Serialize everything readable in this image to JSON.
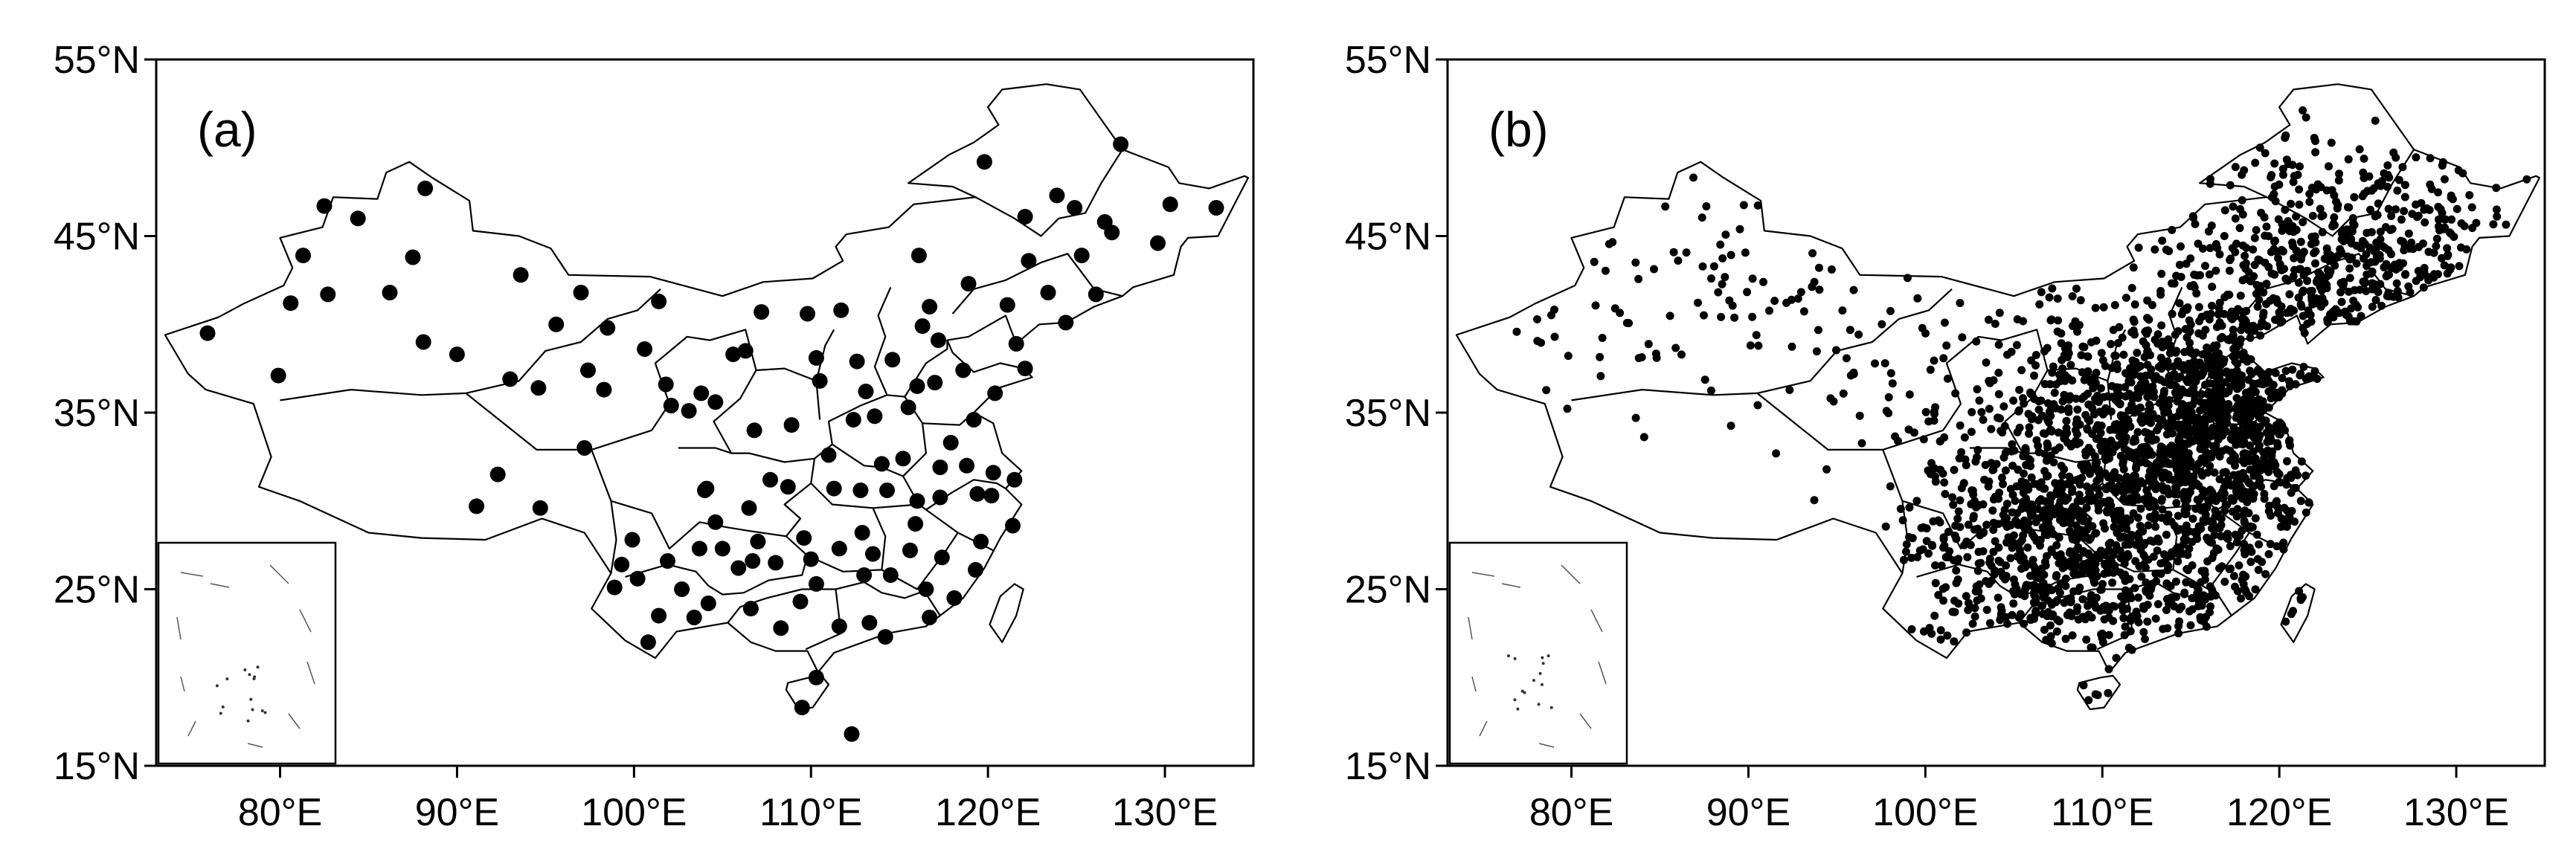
{
  "figure": {
    "panels": [
      {
        "label": "(a)",
        "station_density": "sparse",
        "inset": "South China Sea islands"
      },
      {
        "label": "(b)",
        "station_density": "dense",
        "inset": "South China Sea islands"
      }
    ]
  },
  "axes": {
    "lon_range": [
      73,
      135
    ],
    "lat_range": [
      15,
      55
    ],
    "x_ticks": [
      "80°E",
      "90°E",
      "100°E",
      "110°E",
      "120°E",
      "130°E"
    ],
    "x_tick_values": [
      80,
      90,
      100,
      110,
      120,
      130
    ],
    "y_ticks": [
      "55°N",
      "45°N",
      "35°N",
      "25°N",
      "15°N"
    ],
    "y_tick_values": [
      55,
      45,
      35,
      25,
      15
    ]
  },
  "map": {
    "region": "China",
    "marker_color": "#000000",
    "boundary_color": "#000000",
    "background": "#ffffff"
  },
  "stations_a": [
    [
      75.9,
      39.5
    ],
    [
      79.9,
      37.1
    ],
    [
      80.6,
      41.2
    ],
    [
      81.3,
      43.9
    ],
    [
      82.7,
      41.7
    ],
    [
      82.5,
      46.7
    ],
    [
      84.4,
      46.0
    ],
    [
      86.2,
      41.8
    ],
    [
      87.5,
      43.8
    ],
    [
      88.1,
      39.0
    ],
    [
      88.2,
      47.7
    ],
    [
      90.0,
      38.3
    ],
    [
      91.1,
      29.7
    ],
    [
      92.3,
      31.5
    ],
    [
      93.6,
      42.8
    ],
    [
      93.0,
      36.9
    ],
    [
      94.6,
      36.4
    ],
    [
      94.7,
      29.6
    ],
    [
      95.6,
      40.0
    ],
    [
      97.4,
      37.4
    ],
    [
      97.0,
      41.8
    ],
    [
      97.2,
      33.0
    ],
    [
      98.5,
      39.8
    ],
    [
      98.3,
      36.3
    ],
    [
      99.3,
      26.4
    ],
    [
      100.6,
      38.6
    ],
    [
      101.8,
      36.6
    ],
    [
      101.4,
      41.3
    ],
    [
      102.1,
      35.4
    ],
    [
      103.1,
      35.1
    ],
    [
      103.8,
      36.1
    ],
    [
      104.1,
      30.7
    ],
    [
      104.6,
      35.6
    ],
    [
      105.6,
      38.3
    ],
    [
      106.3,
      38.5
    ],
    [
      106.8,
      34.0
    ],
    [
      107.2,
      40.7
    ],
    [
      108.9,
      34.3
    ],
    [
      109.8,
      40.6
    ],
    [
      110.3,
      38.1
    ],
    [
      110.5,
      36.8
    ],
    [
      111.7,
      40.8
    ],
    [
      112.6,
      37.9
    ],
    [
      113.6,
      34.8
    ],
    [
      114.6,
      38.0
    ],
    [
      116.3,
      39.9
    ],
    [
      117.2,
      39.1
    ],
    [
      117.0,
      36.7
    ],
    [
      118.8,
      32.0
    ],
    [
      117.3,
      31.9
    ],
    [
      120.2,
      30.3
    ],
    [
      121.5,
      31.2
    ],
    [
      119.3,
      26.1
    ],
    [
      118.1,
      24.5
    ],
    [
      116.7,
      23.4
    ],
    [
      113.3,
      23.1
    ],
    [
      114.2,
      22.3
    ],
    [
      110.3,
      25.3
    ],
    [
      108.3,
      22.8
    ],
    [
      109.4,
      24.3
    ],
    [
      106.7,
      26.6
    ],
    [
      106.5,
      29.6
    ],
    [
      104.0,
      30.6
    ],
    [
      102.7,
      25.0
    ],
    [
      100.2,
      25.6
    ],
    [
      100.8,
      22.0
    ],
    [
      103.4,
      23.4
    ],
    [
      105.0,
      27.3
    ],
    [
      107.0,
      27.7
    ],
    [
      112.9,
      28.2
    ],
    [
      114.3,
      30.6
    ],
    [
      115.9,
      28.7
    ],
    [
      117.3,
      30.2
    ],
    [
      113.0,
      25.8
    ],
    [
      111.3,
      30.7
    ],
    [
      111.6,
      27.3
    ],
    [
      110.3,
      20.0
    ],
    [
      109.5,
      18.3
    ],
    [
      112.3,
      16.8
    ],
    [
      118.6,
      37.4
    ],
    [
      120.4,
      36.1
    ],
    [
      122.1,
      37.5
    ],
    [
      121.6,
      38.9
    ],
    [
      123.4,
      41.8
    ],
    [
      122.3,
      43.6
    ],
    [
      125.3,
      43.9
    ],
    [
      126.6,
      45.8
    ],
    [
      124.9,
      46.6
    ],
    [
      123.9,
      47.3
    ],
    [
      127.5,
      50.2
    ],
    [
      119.8,
      49.2
    ],
    [
      122.1,
      46.1
    ],
    [
      116.1,
      43.9
    ],
    [
      118.9,
      42.3
    ],
    [
      116.7,
      41.0
    ],
    [
      121.1,
      41.1
    ],
    [
      129.6,
      44.6
    ],
    [
      130.3,
      46.8
    ],
    [
      132.9,
      46.6
    ],
    [
      127.0,
      45.2
    ],
    [
      126.1,
      41.7
    ],
    [
      124.4,
      40.1
    ],
    [
      120.3,
      31.6
    ],
    [
      119.2,
      34.6
    ],
    [
      116.0,
      36.5
    ],
    [
      113.1,
      36.2
    ],
    [
      115.5,
      35.3
    ],
    [
      112.4,
      34.6
    ],
    [
      114.0,
      32.1
    ],
    [
      111.0,
      32.6
    ],
    [
      109.6,
      27.9
    ],
    [
      107.7,
      31.2
    ],
    [
      105.9,
      26.2
    ],
    [
      104.6,
      28.8
    ],
    [
      101.9,
      26.6
    ],
    [
      99.9,
      27.8
    ],
    [
      98.9,
      25.1
    ],
    [
      101.4,
      23.5
    ],
    [
      104.2,
      24.2
    ],
    [
      106.6,
      23.9
    ],
    [
      111.6,
      22.9
    ],
    [
      114.5,
      25.8
    ],
    [
      115.6,
      27.2
    ],
    [
      117.4,
      26.8
    ],
    [
      119.6,
      27.7
    ],
    [
      116.5,
      25.0
    ],
    [
      121.4,
      28.6
    ],
    [
      119.4,
      30.4
    ],
    [
      117.9,
      33.3
    ],
    [
      115.2,
      32.4
    ],
    [
      112.8,
      30.6
    ],
    [
      108.7,
      30.8
    ],
    [
      103.7,
      27.3
    ],
    [
      108.0,
      26.5
    ],
    [
      110.0,
      26.7
    ],
    [
      113.5,
      27.0
    ],
    [
      116.0,
      30.0
    ]
  ]
}
